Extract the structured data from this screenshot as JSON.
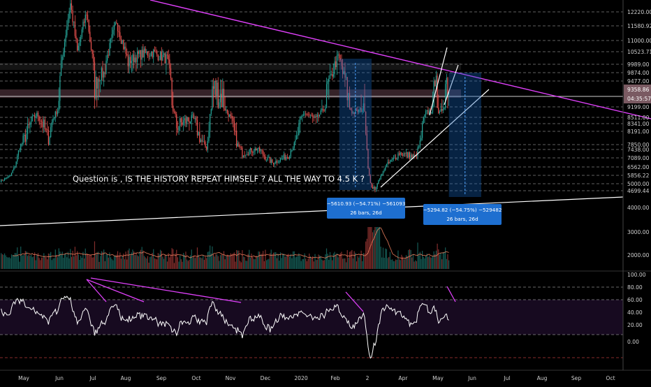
{
  "chart_data": {
    "type": "candlestick",
    "price_axis": {
      "ticks": [
        "12220.00",
        "11580.92",
        "11000.00",
        "10523.71",
        "9989.00",
        "9874.00",
        "9477.00",
        "9199.00",
        "8511.00",
        "8341.00",
        "8191.00",
        "7850.00",
        "7438.00",
        "7089.00",
        "6562.00",
        "5856.22",
        "5000.00",
        "4699.44",
        "4000.00",
        "3000.00",
        "2000.00"
      ],
      "current_price": "9358.86",
      "countdown": "04:35:57"
    },
    "time_axis": {
      "labels": [
        "May",
        "Jun",
        "Jul",
        "Aug",
        "Sep",
        "Oct",
        "Nov",
        "Dec",
        "2020",
        "Feb",
        "2",
        "Apr",
        "May",
        "Jun",
        "Jul",
        "Aug",
        "Sep",
        "Oct"
      ]
    },
    "price_series": {
      "approximate": true,
      "points": [
        [
          "2019-04-25",
          5200
        ],
        [
          "2019-05-05",
          5800
        ],
        [
          "2019-05-14",
          7800
        ],
        [
          "2019-05-28",
          8700
        ],
        [
          "2019-06-07",
          8000
        ],
        [
          "2019-06-15",
          9000
        ],
        [
          "2019-06-26",
          12600
        ],
        [
          "2019-07-02",
          10500
        ],
        [
          "2019-07-10",
          12200
        ],
        [
          "2019-07-17",
          9500
        ],
        [
          "2019-07-25",
          9800
        ],
        [
          "2019-08-05",
          11800
        ],
        [
          "2019-08-15",
          10100
        ],
        [
          "2019-08-25",
          10400
        ],
        [
          "2019-09-05",
          10500
        ],
        [
          "2019-09-18",
          10200
        ],
        [
          "2019-09-26",
          8300
        ],
        [
          "2019-10-10",
          8500
        ],
        [
          "2019-10-22",
          7600
        ],
        [
          "2019-10-27",
          9400
        ],
        [
          "2019-11-05",
          9300
        ],
        [
          "2019-11-22",
          7300
        ],
        [
          "2019-12-05",
          7500
        ],
        [
          "2019-12-18",
          6800
        ],
        [
          "2020-01-01",
          7200
        ],
        [
          "2020-01-15",
          8800
        ],
        [
          "2020-01-25",
          8400
        ],
        [
          "2020-02-13",
          10300
        ],
        [
          "2020-02-26",
          8800
        ],
        [
          "2020-03-07",
          9100
        ],
        [
          "2020-03-12",
          5000
        ],
        [
          "2020-03-16",
          4700
        ],
        [
          "2020-03-25",
          6600
        ],
        [
          "2020-04-06",
          7300
        ],
        [
          "2020-04-20",
          7100
        ],
        [
          "2020-04-29",
          8800
        ],
        [
          "2020-05-05",
          9000
        ],
        [
          "2020-05-08",
          9900
        ],
        [
          "2020-05-10",
          8600
        ],
        [
          "2020-05-17",
          9600
        ],
        [
          "2020-05-19",
          9358
        ]
      ]
    },
    "volume_axis": {
      "ticks": [
        "3000.00",
        "2000.00"
      ]
    },
    "rsi_axis": {
      "ticks": [
        "100.00",
        "80.00",
        "60.00",
        "40.00",
        "20.00",
        "0.00"
      ]
    },
    "annotation": "Question is , IS THE HISTORY REPEAT HIMSELF ? ALL THE WAY TO 4.5 K ?",
    "measure_boxes": [
      {
        "start": "2020-02-14",
        "end": "2020-03-13",
        "line1": "−5610.93 (−54.71%) −561093",
        "line2": "26 bars, 26d"
      },
      {
        "start": "2020-05-19",
        "end": "2020-06-16",
        "line1": "−5294.82 (−54.75%) −529482",
        "line2": "26 bars, 26d"
      }
    ],
    "colors": {
      "up": "#26a69a",
      "down": "#ef5350",
      "trendline": "#e040fb",
      "rsi_line": "#ffffff",
      "rsi_band": "#1a0b24",
      "measure_box": "#1565c0",
      "price_label": "#7a5a62"
    },
    "grid": false
  }
}
